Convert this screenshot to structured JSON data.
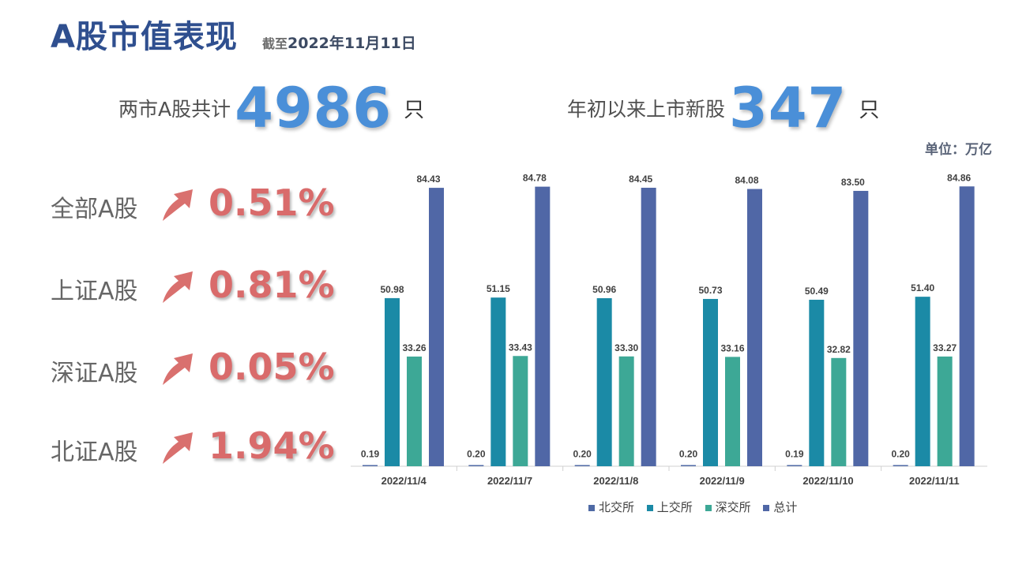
{
  "header": {
    "title": "A股市值表现",
    "asof_prefix": "截至",
    "asof_date": "2022年11月11日"
  },
  "stats": {
    "total_label": "两市A股共计",
    "total_value": "4986",
    "total_unit": "只",
    "new_label": "年初以来上市新股",
    "new_value": "347",
    "new_unit": "只"
  },
  "indices": [
    {
      "name": "全部A股",
      "change": "0.51%",
      "direction": "up",
      "icon": "up-arrow-icon"
    },
    {
      "name": "上证A股",
      "change": "0.81%",
      "direction": "up",
      "icon": "up-arrow-icon"
    },
    {
      "name": "深证A股",
      "change": "0.05%",
      "direction": "up",
      "icon": "up-arrow-icon"
    },
    {
      "name": "北证A股",
      "change": "1.94%",
      "direction": "up",
      "icon": "up-arrow-icon"
    }
  ],
  "colors": {
    "title": "#2f4f8f",
    "big_number": "#4a8fd8",
    "change": "#d96b6b",
    "arrow": "#d9706e"
  },
  "chart_data": {
    "type": "bar",
    "unit_label": "单位：万亿",
    "categories": [
      "2022/11/4",
      "2022/11/7",
      "2022/11/8",
      "2022/11/9",
      "2022/11/10",
      "2022/11/11"
    ],
    "series": [
      {
        "name": "北交所",
        "color": "#4f6aa5",
        "values": [
          0.19,
          0.2,
          0.2,
          0.2,
          0.19,
          0.2
        ],
        "labels": [
          "0.19",
          "0.20",
          "0.20",
          "0.20",
          "0.19",
          "0.20"
        ]
      },
      {
        "name": "上交所",
        "color": "#1b8aa6",
        "values": [
          50.98,
          51.15,
          50.96,
          50.73,
          50.49,
          51.4
        ],
        "labels": [
          "50.98",
          "51.15",
          "50.96",
          "50.73",
          "50.49",
          "51.40"
        ]
      },
      {
        "name": "深交所",
        "color": "#3da896",
        "values": [
          33.26,
          33.43,
          33.3,
          33.16,
          32.82,
          33.27
        ],
        "labels": [
          "33.26",
          "33.43",
          "33.30",
          "33.16",
          "32.82",
          "33.27"
        ]
      },
      {
        "name": "总计",
        "color": "#5067a6",
        "values": [
          84.43,
          84.78,
          84.45,
          84.08,
          83.5,
          84.86
        ],
        "labels": [
          "84.43",
          "84.78",
          "84.45",
          "84.08",
          "83.50",
          "84.86"
        ]
      }
    ],
    "ylim": [
      0,
      95
    ],
    "grid": false,
    "legend": "bottom"
  }
}
